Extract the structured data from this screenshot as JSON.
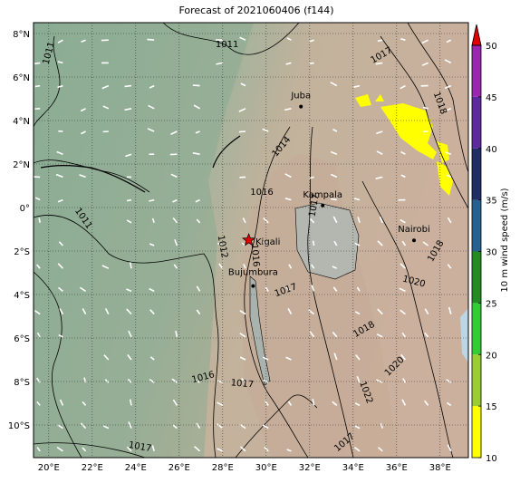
{
  "map": {
    "title": "Forecast of 2021060406 (f144)",
    "lon_lim": [
      19.3,
      39.3
    ],
    "lat_lim": [
      -11.5,
      8.5
    ],
    "lon_ticks": [
      {
        "value": 20,
        "label": "20°E"
      },
      {
        "value": 22,
        "label": "22°E"
      },
      {
        "value": 24,
        "label": "24°E"
      },
      {
        "value": 26,
        "label": "26°E"
      },
      {
        "value": 28,
        "label": "28°E"
      },
      {
        "value": 30,
        "label": "30°E"
      },
      {
        "value": 32,
        "label": "32°E"
      },
      {
        "value": 34,
        "label": "34°E"
      },
      {
        "value": 36,
        "label": "36°E"
      },
      {
        "value": 38,
        "label": "38°E"
      }
    ],
    "lat_ticks": [
      {
        "value": 8,
        "label": "8°N"
      },
      {
        "value": 6,
        "label": "6°N"
      },
      {
        "value": 4,
        "label": "4°N"
      },
      {
        "value": 2,
        "label": "2°N"
      },
      {
        "value": 0,
        "label": "0°"
      },
      {
        "value": -2,
        "label": "2°S"
      },
      {
        "value": -4,
        "label": "4°S"
      },
      {
        "value": -6,
        "label": "6°S"
      },
      {
        "value": -8,
        "label": "8°S"
      },
      {
        "value": -10,
        "label": "10°S"
      }
    ],
    "grid": true,
    "places": [
      "Juba",
      "Kampala",
      "Nairobi",
      "Kigali",
      "Bujumbura"
    ],
    "isobar_labels": [
      "1011",
      "1011",
      "1011",
      "1012",
      "1014",
      "1016",
      "1017",
      "1016",
      "1017",
      "1018",
      "1018",
      "1020",
      "1020",
      "1022",
      "1016",
      "1017",
      "1017",
      "1018",
      "1017",
      "1017"
    ],
    "colorbar": {
      "label": "10 m wind speed (m/s)",
      "lim": [
        10,
        50
      ],
      "ticks": [
        10,
        15,
        20,
        25,
        30,
        35,
        40,
        45,
        50
      ],
      "colors": [
        "#ffff00",
        "#9acd32",
        "#32cd32",
        "#228b22",
        "#27618f",
        "#1f2f66",
        "#5b2a9e",
        "#9b27b0"
      ],
      "extend_color": "#e00000"
    }
  }
}
